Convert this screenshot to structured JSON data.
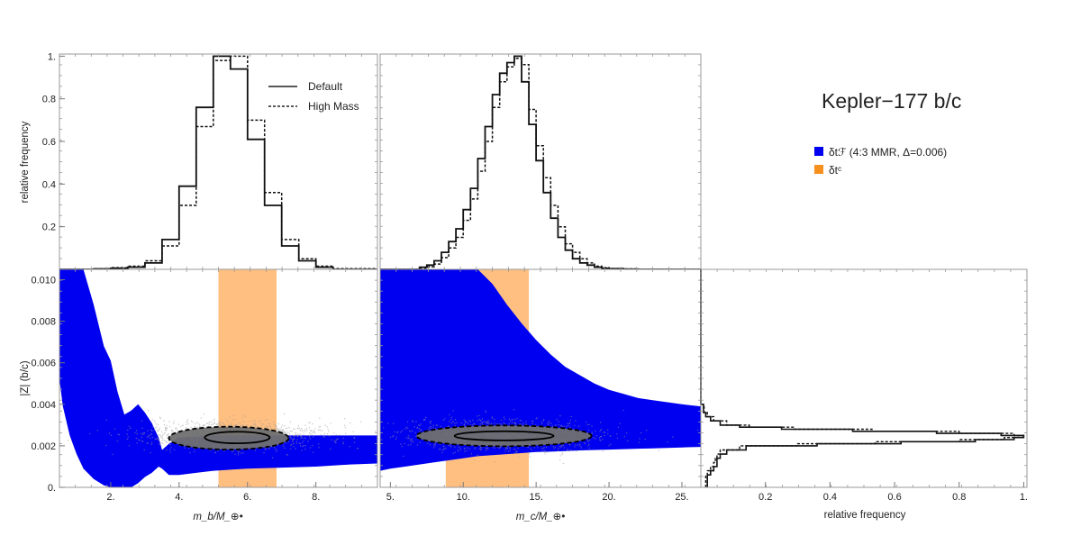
{
  "title": "Kepler−177 b/c",
  "legend_main": [
    {
      "label": "δtℱ (4:3 MMR, Δ=0.006)",
      "color": "#0000f0"
    },
    {
      "label": "δtᶜ",
      "color": "#f7901e"
    }
  ],
  "legend_hist": [
    {
      "label": "Default",
      "style": "solid"
    },
    {
      "label": "High Mass",
      "style": "dashed"
    }
  ],
  "colors": {
    "blue": "#0000f0",
    "orange": "#ffbf80",
    "scatter": "#9a9a9a",
    "contour": "#707070"
  },
  "chart_data": [
    {
      "type": "histogram",
      "id": "mb-hist",
      "ylabel": "relative frequency",
      "xlim": [
        0.5,
        9.8
      ],
      "ylim": [
        0,
        1.01
      ],
      "yticks": [
        "0.2",
        "0.4",
        "0.6",
        "0.8",
        "1."
      ],
      "yticks_values": [
        0.2,
        0.4,
        0.6,
        0.8,
        1.0
      ],
      "bin_edges": [
        0.5,
        1.5,
        2.0,
        2.5,
        3.0,
        3.5,
        4.0,
        4.5,
        5.0,
        5.5,
        6.0,
        6.5,
        7.0,
        7.5,
        8.0,
        8.5,
        9.8
      ],
      "series": [
        {
          "name": "Default",
          "values": [
            0,
            0.002,
            0.005,
            0.01,
            0.03,
            0.14,
            0.39,
            0.76,
            1.0,
            0.94,
            0.61,
            0.3,
            0.11,
            0.04,
            0.01,
            0
          ]
        },
        {
          "name": "High Mass",
          "values": [
            0,
            0.003,
            0.008,
            0.015,
            0.04,
            0.11,
            0.3,
            0.67,
            0.98,
            1.0,
            0.7,
            0.36,
            0.14,
            0.05,
            0.015,
            0.003
          ]
        }
      ]
    },
    {
      "type": "histogram",
      "id": "mc-hist",
      "xlim": [
        4.3,
        26.3
      ],
      "ylim": [
        0,
        1.01
      ],
      "bin_edges": [
        4.3,
        7.0,
        7.5,
        8.0,
        8.5,
        9.0,
        9.5,
        10.0,
        10.5,
        11.0,
        11.5,
        12.0,
        12.5,
        13.0,
        13.5,
        14.0,
        14.5,
        15.0,
        15.5,
        16.0,
        16.5,
        17.0,
        17.5,
        18.0,
        18.5,
        19.0,
        19.5,
        20.0,
        21.0,
        22.0,
        26.3
      ],
      "series": [
        {
          "name": "Default",
          "values": [
            0,
            0.01,
            0.02,
            0.04,
            0.08,
            0.13,
            0.19,
            0.28,
            0.38,
            0.52,
            0.67,
            0.82,
            0.92,
            0.97,
            1.0,
            0.88,
            0.68,
            0.51,
            0.36,
            0.24,
            0.15,
            0.09,
            0.05,
            0.03,
            0.02,
            0.01,
            0.005,
            0.003,
            0.001,
            0
          ]
        },
        {
          "name": "High Mass",
          "values": [
            0,
            0.006,
            0.012,
            0.025,
            0.055,
            0.1,
            0.15,
            0.23,
            0.33,
            0.46,
            0.6,
            0.76,
            0.88,
            0.95,
            0.99,
            0.96,
            0.75,
            0.58,
            0.43,
            0.3,
            0.2,
            0.12,
            0.08,
            0.05,
            0.03,
            0.015,
            0.008,
            0.004,
            0.002,
            0
          ]
        }
      ]
    },
    {
      "type": "scatter",
      "id": "mb-z",
      "xlabel": "m_b/M_⊕•",
      "ylabel": "|Z| (b/c)",
      "xlim": [
        0.5,
        9.8
      ],
      "ylim": [
        0,
        0.0105
      ],
      "xticks": [
        "2.",
        "4.",
        "6.",
        "8."
      ],
      "xticks_values": [
        2,
        4,
        6,
        8
      ],
      "yticks": [
        "0.",
        "0.002",
        "0.004",
        "0.006",
        "0.008",
        "0.010"
      ],
      "yticks_values": [
        0,
        0.002,
        0.004,
        0.006,
        0.008,
        0.01
      ],
      "orange_band": [
        5.15,
        6.85
      ],
      "blue_region_x": [
        0.5,
        0.6,
        0.8,
        1.0,
        1.2,
        1.5,
        1.8,
        2.0,
        2.2,
        2.4,
        2.6,
        2.8,
        3.0,
        3.2,
        3.4,
        3.5,
        3.7,
        4.0,
        4.5,
        5.0,
        6.0,
        7.0,
        8.0,
        9.0,
        9.8
      ],
      "blue_region_upper": [
        0.0105,
        0.0105,
        0.0105,
        0.0105,
        0.0105,
        0.0088,
        0.0068,
        0.0061,
        0.0046,
        0.0035,
        0.0037,
        0.004,
        0.0036,
        0.0031,
        0.0024,
        0.0018,
        0.0021,
        0.0024,
        0.00245,
        0.0025,
        0.0025,
        0.0025,
        0.0025,
        0.0025,
        0.0025
      ],
      "blue_region_lower": [
        0.0052,
        0.0039,
        0.0025,
        0.0016,
        0.0009,
        0.0004,
        0.0001,
        0,
        0,
        0,
        0,
        0.0002,
        0.0005,
        0.0007,
        0.001,
        0.0009,
        0.0006,
        0.0006,
        0.0007,
        0.0008,
        0.0009,
        0.00095,
        0.001,
        0.0011,
        0.00115
      ],
      "gray_cloud": {
        "x_center": 5.6,
        "y_center": 0.0025,
        "x_spread": 1.3,
        "y_spread": 0.00035
      },
      "contour_outer": {
        "cx": 5.45,
        "cy": 0.00237,
        "rx": 1.75,
        "ry": 0.00055
      },
      "contour_inner": {
        "cx": 5.7,
        "cy": 0.0024,
        "rx": 0.95,
        "ry": 0.00028
      }
    },
    {
      "type": "scatter",
      "id": "mc-z",
      "xlabel": "m_c/M_⊕•",
      "xlim": [
        4.3,
        26.3
      ],
      "ylim": [
        0,
        0.0105
      ],
      "xticks": [
        "5.",
        "10.",
        "15.",
        "20.",
        "25."
      ],
      "xticks_values": [
        5,
        10,
        15,
        20,
        25
      ],
      "orange_band": [
        8.8,
        14.5
      ],
      "blue_region_x": [
        4.3,
        5,
        6,
        7,
        8,
        9,
        10,
        11,
        12,
        13,
        14,
        15,
        16,
        17,
        18,
        19,
        20,
        21,
        22,
        23,
        24,
        25,
        26.3
      ],
      "blue_region_upper": [
        0.0105,
        0.0105,
        0.0105,
        0.0105,
        0.0105,
        0.0105,
        0.0105,
        0.0105,
        0.0098,
        0.0088,
        0.0079,
        0.0071,
        0.0064,
        0.0058,
        0.0054,
        0.005,
        0.0047,
        0.0045,
        0.0043,
        0.0042,
        0.0041,
        0.004,
        0.0039
      ],
      "blue_region_lower": [
        0.0008,
        0.0009,
        0.001,
        0.0011,
        0.0012,
        0.0013,
        0.0014,
        0.0015,
        0.00155,
        0.0016,
        0.00165,
        0.0017,
        0.00172,
        0.00175,
        0.00178,
        0.0018,
        0.00182,
        0.00184,
        0.00186,
        0.00188,
        0.0019,
        0.00192,
        0.00195
      ],
      "gray_cloud": {
        "x_center": 12.8,
        "y_center": 0.0025,
        "x_spread": 3.2,
        "y_spread": 0.00038
      },
      "contour_outer": {
        "cx": 12.8,
        "cy": 0.00248,
        "rx": 6.0,
        "ry": 0.0005
      },
      "contour_inner": {
        "cx": 12.8,
        "cy": 0.00248,
        "rx": 3.4,
        "ry": 0.00022
      }
    },
    {
      "type": "histogram",
      "id": "z-hist",
      "orientation": "horizontal",
      "xlabel": "relative frequency",
      "xlim": [
        0,
        1.01
      ],
      "ylim": [
        0,
        0.0105
      ],
      "xticks": [
        "0.2",
        "0.4",
        "0.6",
        "0.8",
        "1."
      ],
      "xticks_values": [
        0.2,
        0.4,
        0.6,
        0.8,
        1.0
      ],
      "bin_edges": [
        0,
        0.0006,
        0.0008,
        0.001,
        0.0012,
        0.0014,
        0.0016,
        0.0018,
        0.002,
        0.0021,
        0.0022,
        0.0023,
        0.0024,
        0.0025,
        0.0026,
        0.0027,
        0.0028,
        0.0029,
        0.003,
        0.0032,
        0.0034,
        0.0036,
        0.004,
        0.0105
      ],
      "series": [
        {
          "name": "Default",
          "values": [
            0.02,
            0.03,
            0.04,
            0.05,
            0.05,
            0.06,
            0.08,
            0.14,
            0.36,
            0.62,
            0.85,
            0.97,
            1.0,
            0.93,
            0.73,
            0.47,
            0.25,
            0.12,
            0.06,
            0.03,
            0.015,
            0.008,
            0
          ]
        },
        {
          "name": "High Mass",
          "values": [
            0.015,
            0.02,
            0.03,
            0.04,
            0.045,
            0.05,
            0.06,
            0.12,
            0.3,
            0.54,
            0.8,
            0.94,
            1.0,
            0.97,
            0.8,
            0.53,
            0.29,
            0.15,
            0.08,
            0.04,
            0.02,
            0.01,
            0
          ]
        }
      ]
    }
  ]
}
